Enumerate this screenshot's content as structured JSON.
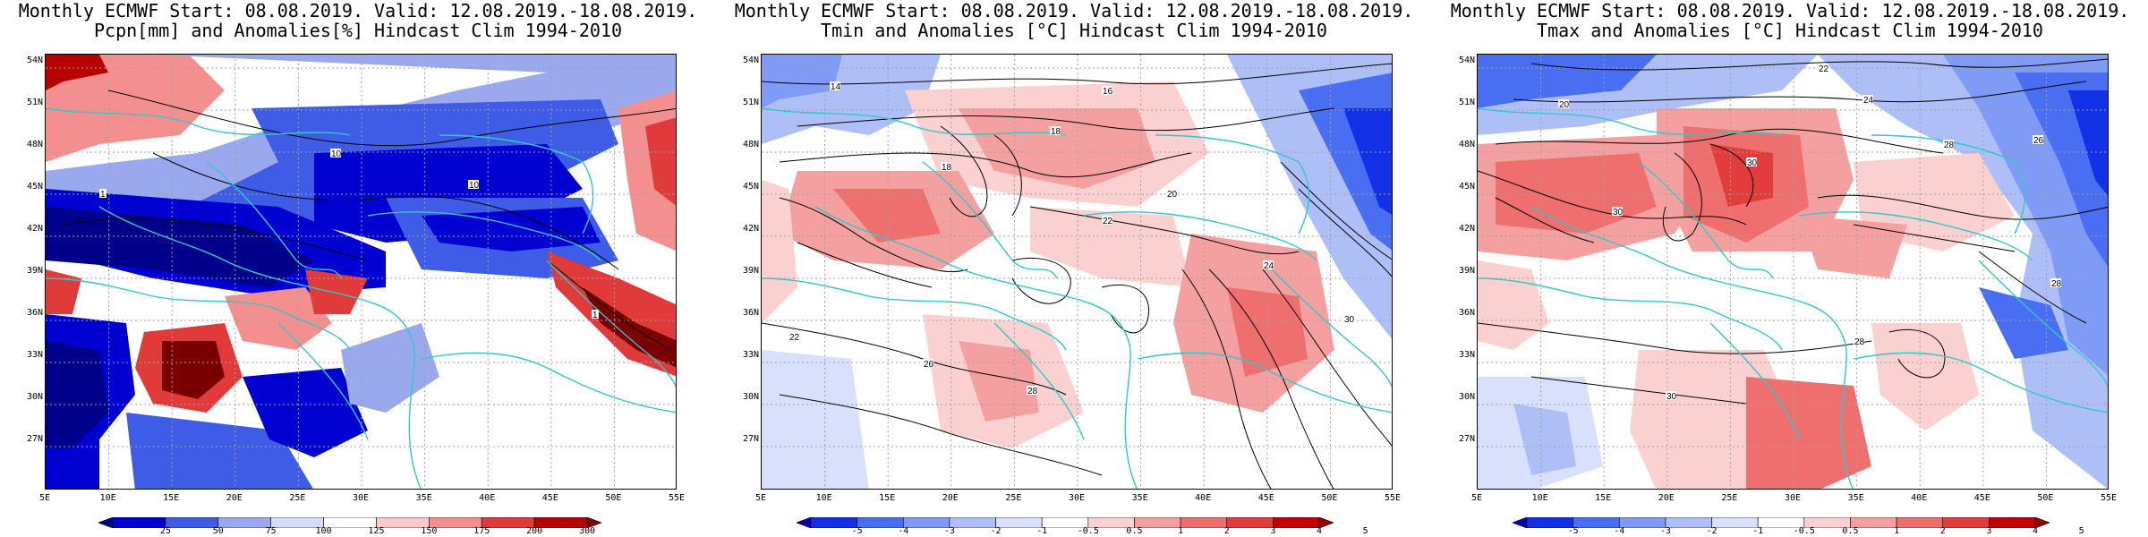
{
  "panels": [
    {
      "title1": "Monthly ECMWF Start: 08.08.2019. Valid: 12.08.2019.-18.08.2019.",
      "title2": "Pcpn[mm] and Anomalies[%] Hindcast Clim 1994-2010",
      "colorbar": {
        "ticks": [
          "25",
          "50",
          "75",
          "100",
          "125",
          "150",
          "175",
          "200",
          "300"
        ],
        "colors": [
          "#00008b",
          "#0000d0",
          "#3e5ce6",
          "#9aa9ee",
          "#d6dcf7",
          "#ffffff",
          "#fbc9c9",
          "#f38f8f",
          "#e03a3a",
          "#b80000",
          "#7a0000"
        ]
      },
      "contour_labels": [
        "10",
        "1"
      ]
    },
    {
      "title1": "Monthly ECMWF Start: 08.08.2019. Valid: 12.08.2019.-18.08.2019.",
      "title2": "Tmin and Anomalies [°C] Hindcast Clim 1994-2010",
      "colorbar": {
        "ticks": [
          "-5",
          "-4",
          "-3",
          "-2",
          "-1",
          "-0.5",
          "0.5",
          "1",
          "2",
          "3",
          "4",
          "5"
        ],
        "colors": [
          "#0000b0",
          "#1230e6",
          "#4a6ef2",
          "#7f9bf5",
          "#aebff8",
          "#d8e0fb",
          "#ffffff",
          "#fbd0d0",
          "#f5a0a0",
          "#ef6f6f",
          "#e23c3c",
          "#c40000",
          "#900000"
        ]
      },
      "contour_labels": [
        "14",
        "16",
        "18",
        "20",
        "22",
        "24",
        "26",
        "28",
        "30"
      ]
    },
    {
      "title1": "Monthly ECMWF Start: 08.08.2019. Valid: 12.08.2019.-18.08.2019.",
      "title2": "Tmax and Anomalies [°C] Hindcast Clim 1994-2010",
      "colorbar": {
        "ticks": [
          "-5",
          "-4",
          "-3",
          "-2",
          "-1",
          "-0.5",
          "0.5",
          "1",
          "2",
          "3",
          "4",
          "5"
        ],
        "colors": [
          "#0000b0",
          "#1230e6",
          "#4a6ef2",
          "#7f9bf5",
          "#aebff8",
          "#d8e0fb",
          "#ffffff",
          "#fbd0d0",
          "#f5a0a0",
          "#ef6f6f",
          "#e23c3c",
          "#c40000",
          "#900000"
        ]
      },
      "contour_labels": [
        "20",
        "22",
        "24",
        "26",
        "28",
        "30"
      ]
    }
  ],
  "lat_labels": [
    "54N",
    "51N",
    "48N",
    "45N",
    "42N",
    "39N",
    "36N",
    "33N",
    "30N",
    "27N"
  ],
  "lon_labels": [
    "5E",
    "10E",
    "15E",
    "20E",
    "25E",
    "30E",
    "35E",
    "40E",
    "45E",
    "50E",
    "55E"
  ],
  "colors": {
    "coast": "#30c8c8",
    "contour": "#000000",
    "grid": "#a0a0a0"
  }
}
